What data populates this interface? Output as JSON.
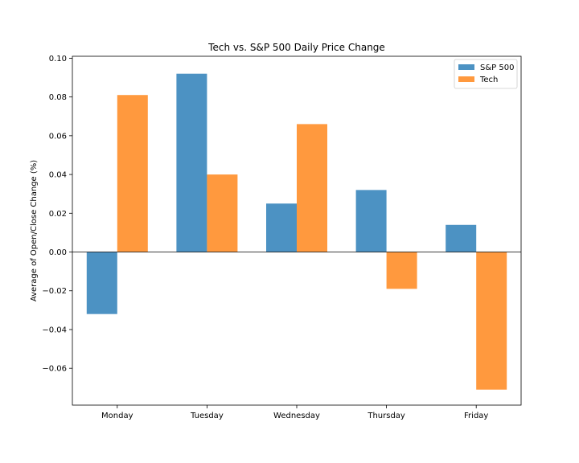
{
  "chart_data": {
    "type": "bar",
    "title": "Tech vs. S&P 500 Daily Price Change",
    "xlabel": "",
    "ylabel": "Average of Open/Close Change (%)",
    "categories": [
      "Monday",
      "Tuesday",
      "Wednesday",
      "Thursday",
      "Friday"
    ],
    "series": [
      {
        "name": "S&P 500",
        "color": "#1f77b4",
        "values": [
          -0.032,
          0.092,
          0.025,
          0.032,
          0.014
        ]
      },
      {
        "name": "Tech",
        "color": "#ff7f0e",
        "values": [
          0.081,
          0.04,
          0.066,
          -0.019,
          -0.071
        ]
      }
    ],
    "ylim": [
      -0.079,
      0.101
    ],
    "yticks": [
      0.1,
      0.08,
      0.06,
      0.04,
      0.02,
      0.0,
      -0.02,
      -0.04,
      -0.06
    ],
    "ytick_labels": [
      "0.10",
      "0.08",
      "0.06",
      "0.04",
      "0.02",
      "0.00",
      "−0.02",
      "−0.04",
      "−0.06"
    ],
    "grid": false,
    "legend_position": "top-right",
    "bar_opacity": 0.8,
    "zero_line": true
  }
}
